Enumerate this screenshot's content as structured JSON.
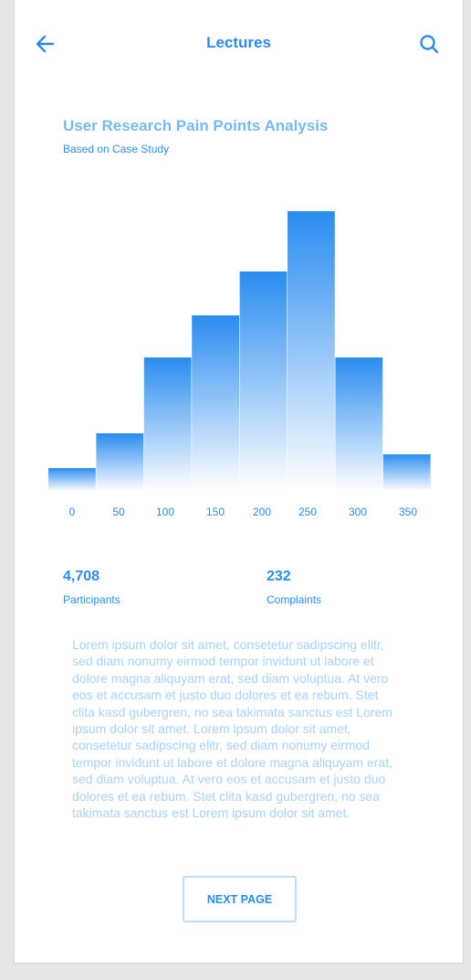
{
  "header": {
    "title": "Lectures",
    "back_icon": "arrow-left-icon",
    "search_icon": "search-icon"
  },
  "chart": {
    "title": "User Research Pain Points Analysis",
    "subtitle": "Based on Case Study"
  },
  "chart_data": {
    "type": "bar",
    "title": "User Research Pain Points Analysis",
    "subtitle": "Based on Case Study",
    "categories": [
      "0",
      "50",
      "100",
      "150",
      "200",
      "250",
      "300",
      "350"
    ],
    "values": [
      25,
      63,
      146,
      192,
      240,
      306,
      146,
      40
    ],
    "xlabel": "",
    "ylabel": "",
    "ylim": [
      0,
      320
    ],
    "grid": false,
    "legend": "none"
  },
  "stats": {
    "participants_value": "4,708",
    "participants_label": "Participants",
    "complaints_value": "232",
    "complaints_label": "Complaints"
  },
  "body_text": "Lorem ipsum dolor sit amet, consetetur sadipscing elitr, sed diam nonumy eirmod tempor invidunt ut labore et dolore magna aliquyam erat, sed diam voluptua. At vero eos et accusam et justo duo dolores et ea rebum. Stet clita kasd gubergren, no sea takimata sanctus est Lorem ipsum dolor sit amet. Lorem ipsum dolor sit amet, consetetur sadipscing elitr, sed diam nonumy eirmod tempor invidunt ut labore et dolore magna aliquyam erat, sed diam voluptua. At vero eos et accusam et justo duo dolores et ea rebum. Stet clita kasd gubergren, no sea takimata sanctus est Lorem ipsum dolor sit amet.",
  "next_button": {
    "label": "NEXT PAGE"
  },
  "colors": {
    "accent": "#2a8cf0",
    "accent_light": "#7ab8f5",
    "bar_top": "#2a8cf0",
    "bar_bottom": "#ffffff"
  }
}
